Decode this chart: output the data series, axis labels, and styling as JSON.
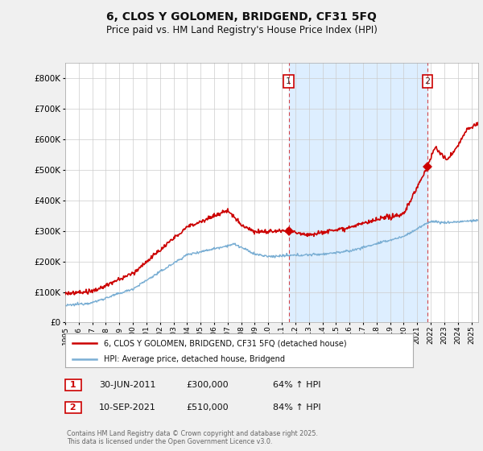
{
  "title": "6, CLOS Y GOLOMEN, BRIDGEND, CF31 5FQ",
  "subtitle": "Price paid vs. HM Land Registry's House Price Index (HPI)",
  "legend_line1": "6, CLOS Y GOLOMEN, BRIDGEND, CF31 5FQ (detached house)",
  "legend_line2": "HPI: Average price, detached house, Bridgend",
  "footer": "Contains HM Land Registry data © Crown copyright and database right 2025.\nThis data is licensed under the Open Government Licence v3.0.",
  "sale1_label": "1",
  "sale1_date": "30-JUN-2011",
  "sale1_price": "£300,000",
  "sale1_hpi": "64% ↑ HPI",
  "sale2_label": "2",
  "sale2_date": "10-SEP-2021",
  "sale2_price": "£510,000",
  "sale2_hpi": "84% ↑ HPI",
  "line_color_red": "#cc0000",
  "line_color_blue": "#7bafd4",
  "marker_color_red": "#cc0000",
  "bg_color": "#f0f0f0",
  "plot_bg": "#ffffff",
  "shade_color": "#ddeeff",
  "ylim": [
    0,
    850000
  ],
  "yticks": [
    0,
    100000,
    200000,
    300000,
    400000,
    500000,
    600000,
    700000,
    800000
  ],
  "sale1_x": 2011.5,
  "sale1_y": 300000,
  "sale2_x": 2021.75,
  "sale2_y": 510000,
  "xmin": 1995,
  "xmax": 2025.5
}
